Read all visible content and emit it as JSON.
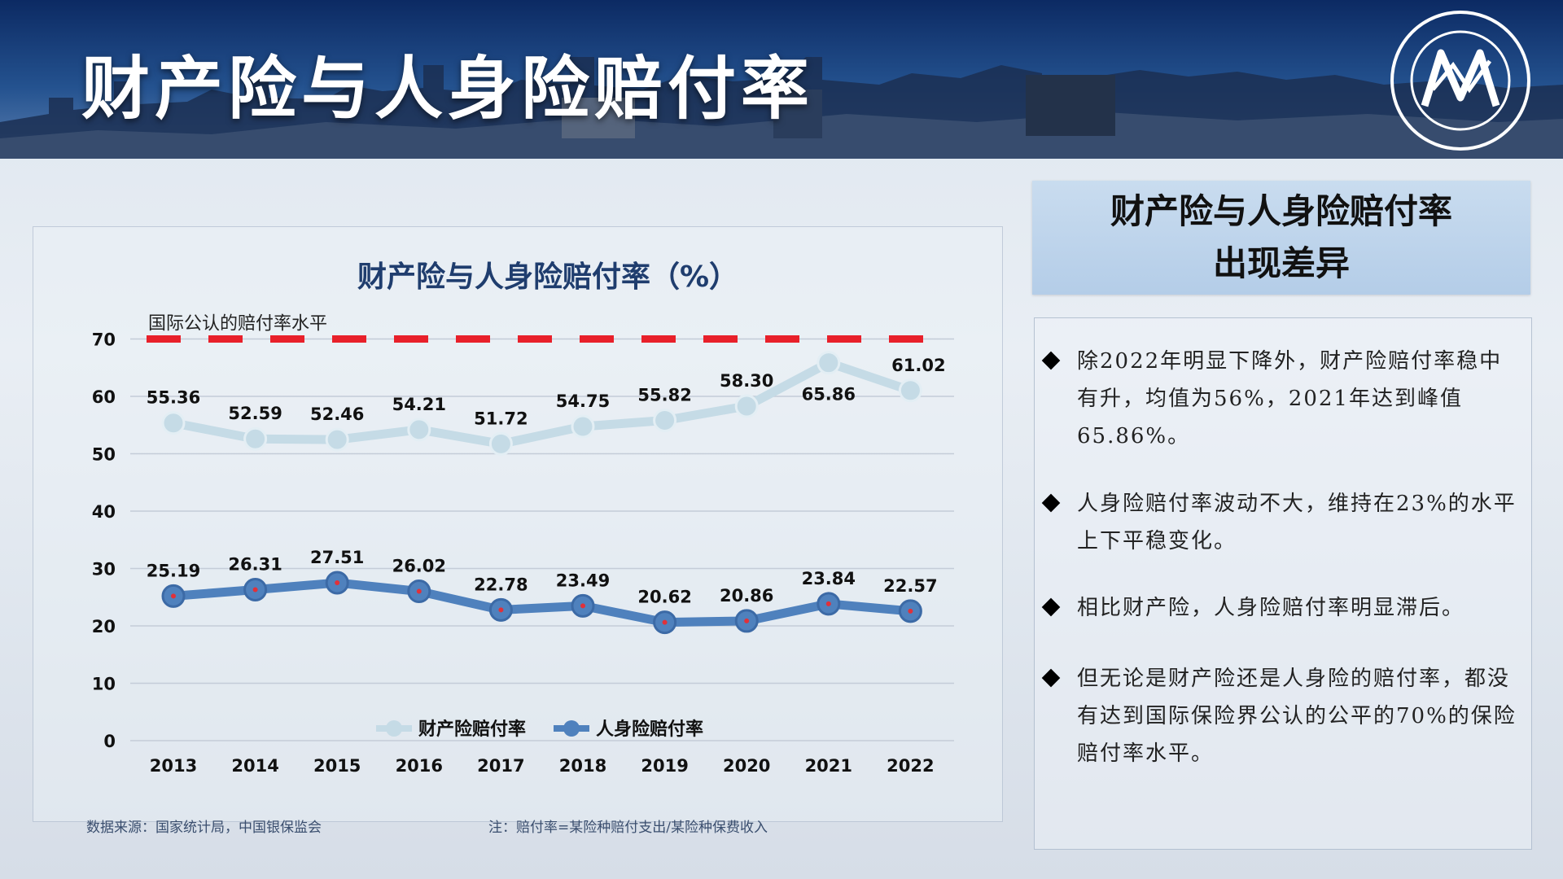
{
  "header": {
    "title": "财产险与人身险赔付率"
  },
  "sidebar": {
    "title_line1": "财产险与人身险赔付率",
    "title_line2": "出现差异",
    "bullets": [
      "除2022年明显下降外，财产险赔付率稳中有升，均值为56%，2021年达到峰值65.86%。",
      "人身险赔付率波动不大，维持在23%的水平上下平稳变化。",
      "相比财产险，人身险赔付率明显滞后。",
      "但无论是财产险还是人身险的赔付率，都没有达到国际保险界公认的公平的70%的保险赔付率水平。"
    ]
  },
  "footer": {
    "source": "数据来源：国家统计局，中国银保监会",
    "note": "注：赔付率=某险种赔付支出/某险种保费收入"
  },
  "chart_data": {
    "type": "line",
    "title": "财产险与人身险赔付率（%）",
    "x": [
      "2013",
      "2014",
      "2015",
      "2016",
      "2017",
      "2018",
      "2019",
      "2020",
      "2021",
      "2022"
    ],
    "series": [
      {
        "name": "财产险赔付率",
        "values": [
          55.36,
          52.59,
          52.46,
          54.21,
          51.72,
          54.75,
          55.82,
          58.3,
          65.86,
          61.02
        ],
        "color": "#c5dbe6",
        "labels": [
          "55.36",
          "52.59",
          "52.46",
          "54.21",
          "51.72",
          "54.75",
          "55.82",
          "58.30",
          "65.86",
          "61.02"
        ]
      },
      {
        "name": "人身险赔付率",
        "values": [
          25.19,
          26.31,
          27.51,
          26.02,
          22.78,
          23.49,
          20.62,
          20.86,
          23.84,
          22.57
        ],
        "color": "#4f81bd",
        "labels": [
          "25.19",
          "26.31",
          "27.51",
          "26.02",
          "22.78",
          "23.49",
          "20.62",
          "20.86",
          "23.84",
          "22.57"
        ]
      }
    ],
    "yticks": [
      "0",
      "10",
      "20",
      "30",
      "40",
      "50",
      "60",
      "70"
    ],
    "ylim": [
      0,
      70
    ],
    "reference_line": {
      "value": 70,
      "label": "国际公认的赔付率水平",
      "color": "#e8202a"
    },
    "grid": true,
    "legend": "bottom-center"
  }
}
